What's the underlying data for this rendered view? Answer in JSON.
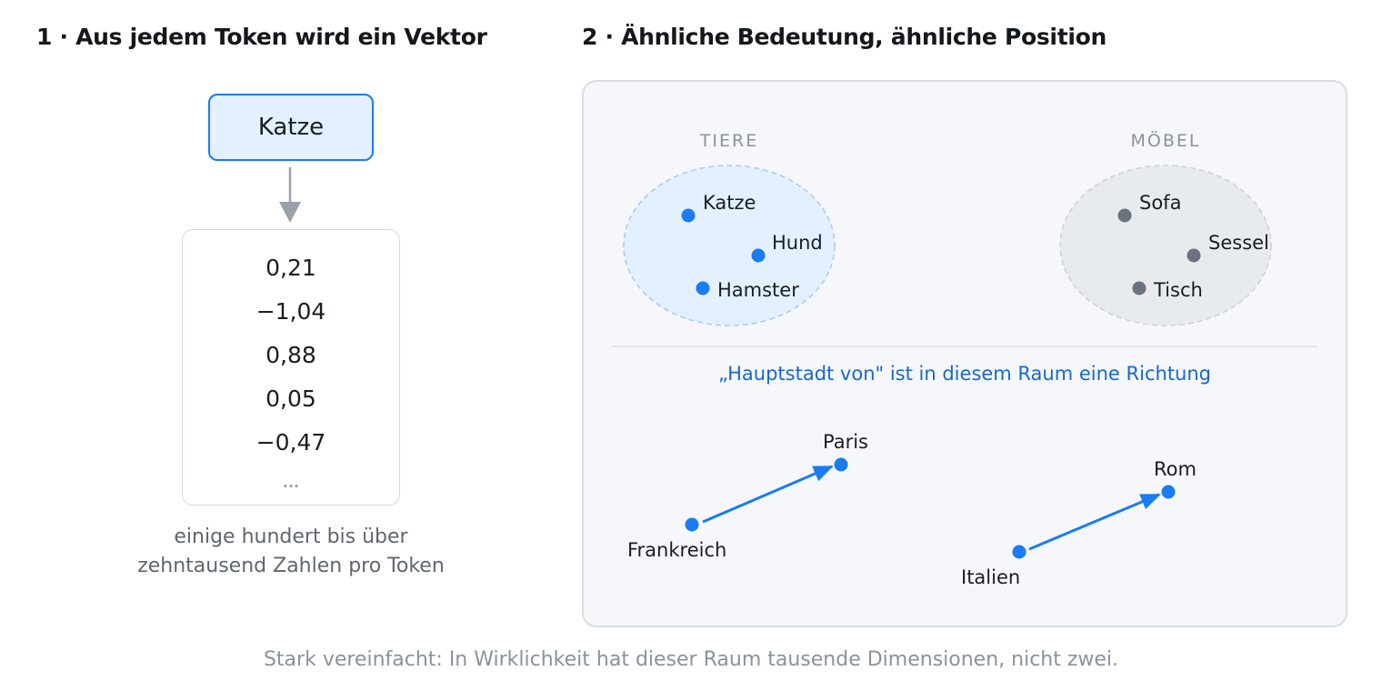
{
  "left": {
    "heading": "1 · Aus jedem Token wird ein Vektor",
    "token": "Katze",
    "vector_values": [
      "0,21",
      "−1,04",
      "0,88",
      "0,05",
      "−0,47"
    ],
    "vector_ellipsis": "...",
    "caption_line1": "einige hundert bis über",
    "caption_line2": "zehntausend Zahlen pro Token"
  },
  "right": {
    "heading": "2 · Ähnliche Bedeutung, ähnliche Position",
    "clusters": [
      {
        "label": "TIERE",
        "words": [
          "Katze",
          "Hund",
          "Hamster"
        ],
        "color": "#1a7cf0"
      },
      {
        "label": "MÖBEL",
        "words": [
          "Sofa",
          "Sessel",
          "Tisch"
        ],
        "color": "#6b7280"
      }
    ],
    "direction_caption": "„Hauptstadt von\" ist in diesem Raum eine Richtung",
    "pairs": [
      {
        "from": "Frankreich",
        "to": "Paris"
      },
      {
        "from": "Italien",
        "to": "Rom"
      }
    ]
  },
  "footnote": "Stark vereinfacht: In Wirklichkeit hat dieser Raum tausende Dimensionen, nicht zwei.",
  "colors": {
    "accent": "#1a7cf0",
    "accent_fill": "#e3f0ff",
    "neutral_dot": "#6b7280",
    "neutral_fill": "#e7eaee",
    "muted_text": "#8a929b"
  }
}
